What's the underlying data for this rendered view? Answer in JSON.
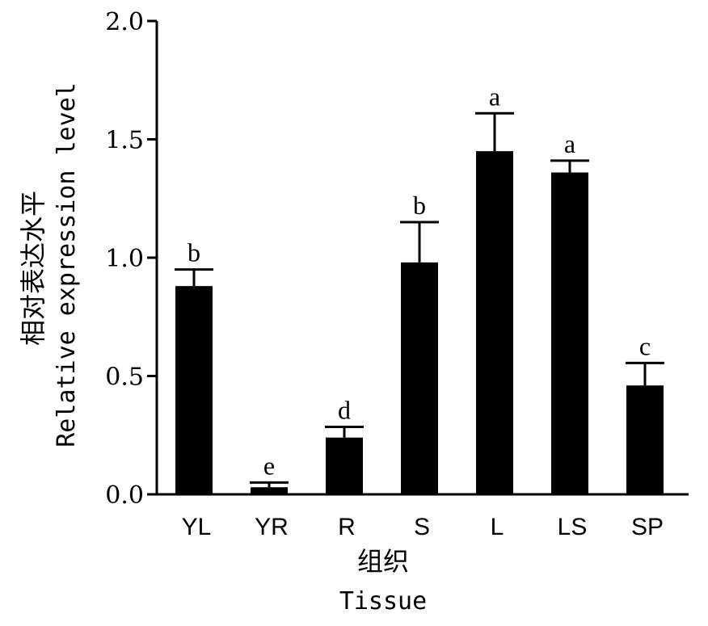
{
  "chart_data": {
    "type": "bar",
    "categories": [
      "YL",
      "YR",
      "R",
      "S",
      "L",
      "LS",
      "SP"
    ],
    "values": [
      0.88,
      0.03,
      0.24,
      0.98,
      1.45,
      1.36,
      0.46
    ],
    "errors": [
      0.07,
      0.02,
      0.045,
      0.17,
      0.16,
      0.05,
      0.095
    ],
    "significance_letters": [
      "b",
      "e",
      "d",
      "b",
      "a",
      "a",
      "c"
    ],
    "ylim": [
      0,
      2.0
    ],
    "yticks": [
      0.0,
      0.5,
      1.0,
      1.5,
      2.0
    ],
    "ytick_labels": [
      "0.0",
      "0.5",
      "1.0",
      "1.5",
      "2.0"
    ],
    "ylabel_cn": "相对表达水平",
    "ylabel_en": "Relative expression level",
    "xlabel_cn": "组织",
    "xlabel_en": "Tissue",
    "bar_color": "#000000",
    "grid": false
  }
}
